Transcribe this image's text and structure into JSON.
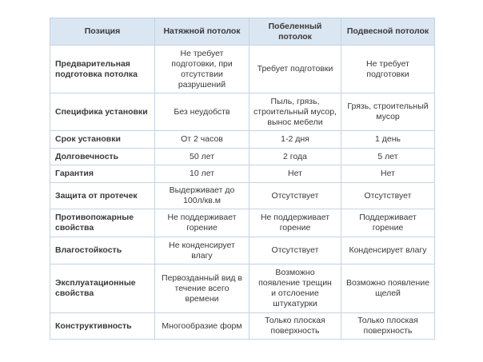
{
  "header": [
    "Позиция",
    "Натяжной потолок",
    "Побеленный потолок",
    "Подвесной потолок"
  ],
  "rows": [
    {
      "cells": [
        "Предварительная подготовка потолка",
        "Не требует подготовки, при отсутствии разрушений",
        "Требует подготовки",
        "Не требует подготовки"
      ]
    },
    {
      "cells": [
        "Специфика установки",
        "Без неудобств",
        "Пыль, грязь, строительный мусор, вынос мебели",
        "Грязь, строительный мусор"
      ]
    },
    {
      "cells": [
        "Срок установки",
        "От 2 часов",
        "1-2 дня",
        "1 день"
      ]
    },
    {
      "cells": [
        "Долговечность",
        "50 лет",
        "2 года",
        "5 лет"
      ]
    },
    {
      "cells": [
        "Гарантия",
        "10 лет",
        "Нет",
        "Нет"
      ]
    },
    {
      "cells": [
        "Защита от протечек",
        "Выдерживает до 100л/кв.м",
        "Отсутствует",
        "Отсутствует"
      ]
    },
    {
      "cells": [
        "Противопожарные свойства",
        "Не поддерживает горение",
        "Не поддерживает горение",
        "Поддерживает горение"
      ]
    },
    {
      "cells": [
        "Влагостойкость",
        "Не конденсирует влагу",
        "Отсутствует",
        "Конденсирует влагу"
      ]
    },
    {
      "cells": [
        "Эксплуатационные свойства",
        "Первозданный вид в течение всего времени",
        "Возможно появление трещин и отслоение штукатурки",
        "Возможно появление щелей"
      ]
    },
    {
      "cells": [
        "Конструктивность",
        "Многообразие форм",
        "Только плоская поверхность",
        "Только плоская поверхность"
      ]
    }
  ],
  "colors": {
    "header_bg": "#dbe6f3",
    "border": "#c3d3e3"
  }
}
